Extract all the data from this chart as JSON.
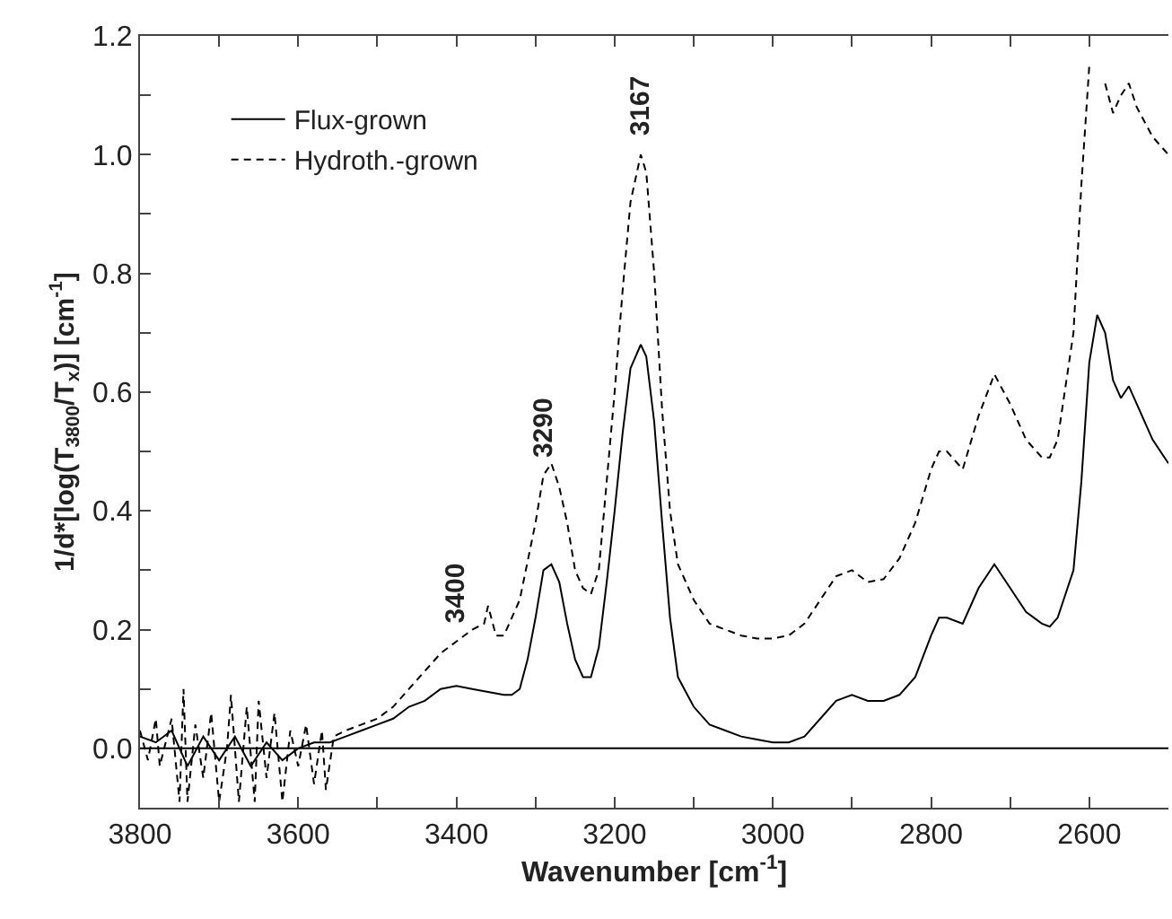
{
  "chart_data": {
    "type": "line",
    "xlabel": "Wavenumber [cm$^{-1}$]",
    "ylabel": "1/d*[log(T$_{3800}$/T$_{x}$)] [cm$^{-1}$]",
    "xlim": [
      3800,
      2500
    ],
    "xticks": [
      3800,
      {
        "value": 3700,
        "label": null
      },
      3600,
      {
        "value": 3500,
        "label": null
      },
      3400,
      {
        "value": 3300,
        "label": null
      },
      3200,
      {
        "value": 3100,
        "label": null
      },
      3000,
      {
        "value": 2900,
        "label": null
      },
      2800,
      {
        "value": 2700,
        "label": null
      },
      2600
    ],
    "ylim": [
      -0.1,
      1.2
    ],
    "yticks": [
      {
        "value": 0,
        "label": "0.0"
      },
      {
        "value": 0.1,
        "label": null
      },
      {
        "value": 0.2,
        "label": "0.2"
      },
      {
        "value": 0.3,
        "label": null
      },
      {
        "value": 0.4,
        "label": "0.4"
      },
      {
        "value": 0.5,
        "label": null
      },
      {
        "value": 0.6,
        "label": "0.6"
      },
      {
        "value": 0.7,
        "label": null
      },
      {
        "value": 0.8,
        "label": "0.8"
      },
      {
        "value": 0.9,
        "label": null
      },
      {
        "value": 1,
        "label": "1.0"
      },
      {
        "value": 1.1,
        "label": null
      },
      {
        "value": 1.2,
        "label": "1.2"
      }
    ],
    "legend": "top left",
    "marker": "none",
    "ref_lines": [
      {
        "axis": "y",
        "value": 0,
        "label": null,
        "color": "#000000",
        "line_style": "solid"
      }
    ],
    "annotations": [
      {
        "text": "3400",
        "x": 3400,
        "y": 0.18
      },
      {
        "text": "3290",
        "x": 3290,
        "y": 0.46
      },
      {
        "text": "3167",
        "x": 3167,
        "y": 1.0
      }
    ],
    "series": [
      {
        "name": "Flux-grown",
        "color": "#000000",
        "line_style": "solid",
        "x": [
          3800,
          3780,
          3760,
          3750,
          3740,
          3720,
          3700,
          3680,
          3660,
          3640,
          3620,
          3600,
          3580,
          3560,
          3540,
          3520,
          3500,
          3480,
          3460,
          3440,
          3420,
          3400,
          3380,
          3360,
          3340,
          3330,
          3320,
          3310,
          3300,
          3290,
          3280,
          3270,
          3260,
          3250,
          3240,
          3230,
          3220,
          3210,
          3200,
          3190,
          3180,
          3167,
          3160,
          3150,
          3140,
          3130,
          3120,
          3100,
          3080,
          3060,
          3040,
          3020,
          3000,
          2980,
          2960,
          2940,
          2920,
          2900,
          2880,
          2860,
          2840,
          2820,
          2800,
          2790,
          2780,
          2760,
          2740,
          2720,
          2700,
          2680,
          2660,
          2650,
          2640,
          2620,
          2610,
          2600,
          2590,
          2580,
          2570,
          2560,
          2550,
          2540,
          2520,
          2500
        ],
        "values": [
          0.02,
          0.01,
          0.03,
          0.0,
          -0.03,
          0.02,
          -0.02,
          0.02,
          -0.03,
          0.01,
          -0.02,
          0.0,
          0.01,
          0.01,
          0.02,
          0.03,
          0.04,
          0.05,
          0.07,
          0.08,
          0.1,
          0.105,
          0.1,
          0.095,
          0.09,
          0.09,
          0.1,
          0.15,
          0.22,
          0.3,
          0.31,
          0.28,
          0.21,
          0.15,
          0.12,
          0.12,
          0.17,
          0.28,
          0.4,
          0.53,
          0.64,
          0.68,
          0.66,
          0.55,
          0.38,
          0.22,
          0.12,
          0.07,
          0.04,
          0.03,
          0.02,
          0.015,
          0.01,
          0.01,
          0.02,
          0.05,
          0.08,
          0.09,
          0.08,
          0.08,
          0.09,
          0.12,
          0.19,
          0.22,
          0.22,
          0.21,
          0.27,
          0.31,
          0.27,
          0.23,
          0.21,
          0.205,
          0.22,
          0.3,
          0.45,
          0.65,
          0.73,
          0.7,
          0.62,
          0.59,
          0.61,
          0.58,
          0.52,
          0.48
        ]
      },
      {
        "name": "Hydroth.-grown",
        "color": "#000000",
        "line_style": "dashed",
        "x": [
          3800,
          3790,
          3780,
          3775,
          3760,
          3750,
          3745,
          3740,
          3730,
          3720,
          3710,
          3700,
          3690,
          3685,
          3675,
          3665,
          3655,
          3650,
          3640,
          3630,
          3620,
          3610,
          3600,
          3590,
          3580,
          3570,
          3565,
          3555,
          3540,
          3520,
          3500,
          3480,
          3460,
          3440,
          3420,
          3400,
          3380,
          3365,
          3360,
          3350,
          3340,
          3320,
          3300,
          3290,
          3280,
          3270,
          3260,
          3250,
          3240,
          3230,
          3220,
          3210,
          3200,
          3190,
          3180,
          3167,
          3160,
          3150,
          3140,
          3130,
          3120,
          3100,
          3080,
          3060,
          3040,
          3020,
          3000,
          2980,
          2960,
          2940,
          2920,
          2900,
          2880,
          2860,
          2840,
          2820,
          2800,
          2790,
          2780,
          2760,
          2740,
          2720,
          2700,
          2680,
          2660,
          2650,
          2640,
          2620,
          2610,
          2600,
          2597,
          2588,
          2580,
          2570,
          2560,
          2550,
          2540,
          2520,
          2500
        ],
        "values": [
          0.03,
          -0.02,
          0.05,
          -0.03,
          0.05,
          -0.09,
          0.1,
          -0.09,
          0.04,
          -0.05,
          0.06,
          -0.09,
          0.0,
          0.09,
          -0.09,
          0.07,
          -0.09,
          0.08,
          -0.05,
          0.06,
          -0.09,
          0.03,
          -0.03,
          0.04,
          -0.06,
          0.03,
          -0.07,
          0.02,
          0.03,
          0.04,
          0.05,
          0.07,
          0.1,
          0.13,
          0.16,
          0.18,
          0.2,
          0.21,
          0.24,
          0.19,
          0.19,
          0.25,
          0.38,
          0.46,
          0.48,
          0.44,
          0.38,
          0.3,
          0.27,
          0.26,
          0.3,
          0.45,
          0.6,
          0.77,
          0.92,
          1.0,
          0.97,
          0.8,
          0.57,
          0.4,
          0.31,
          0.25,
          0.21,
          0.2,
          0.19,
          0.185,
          0.185,
          0.19,
          0.21,
          0.25,
          0.29,
          0.3,
          0.28,
          0.285,
          0.32,
          0.38,
          0.47,
          0.5,
          0.5,
          0.47,
          0.56,
          0.63,
          0.58,
          0.52,
          0.49,
          0.49,
          0.52,
          0.7,
          0.95,
          1.15,
          null,
          null,
          1.12,
          1.07,
          1.1,
          1.12,
          1.08,
          1.03,
          1.0
        ]
      }
    ]
  }
}
